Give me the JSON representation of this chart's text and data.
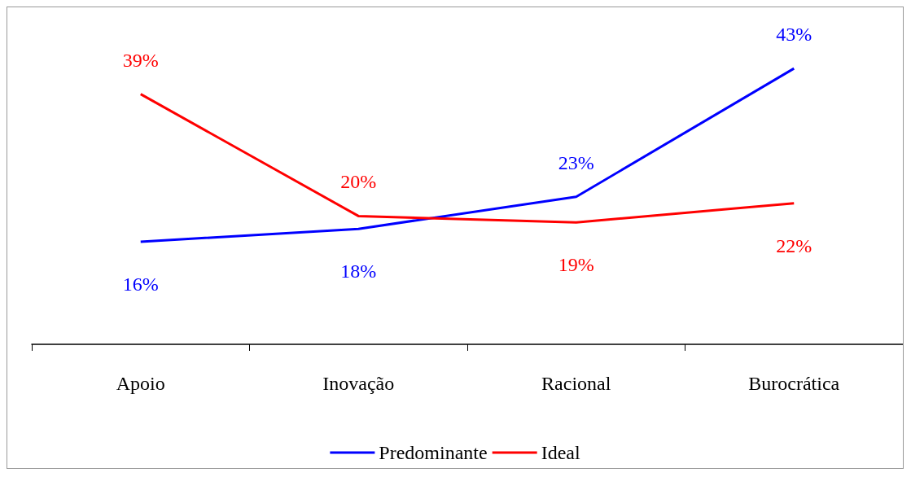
{
  "chart_data": {
    "type": "line",
    "categories": [
      "Apoio",
      "Inovação",
      "Racional",
      "Burocrática"
    ],
    "series": [
      {
        "name": "Predominante",
        "color": "#0000ff",
        "values": [
          16,
          18,
          23,
          43
        ],
        "value_labels": [
          "16%",
          "18%",
          "23%",
          "43%"
        ]
      },
      {
        "name": "Ideal",
        "color": "#ff0000",
        "values": [
          39,
          20,
          19,
          22
        ],
        "value_labels": [
          "39%",
          "20%",
          "19%",
          "22%"
        ]
      }
    ],
    "legend": "bottom",
    "grid": false,
    "marker": "none",
    "line_style": "solid"
  }
}
